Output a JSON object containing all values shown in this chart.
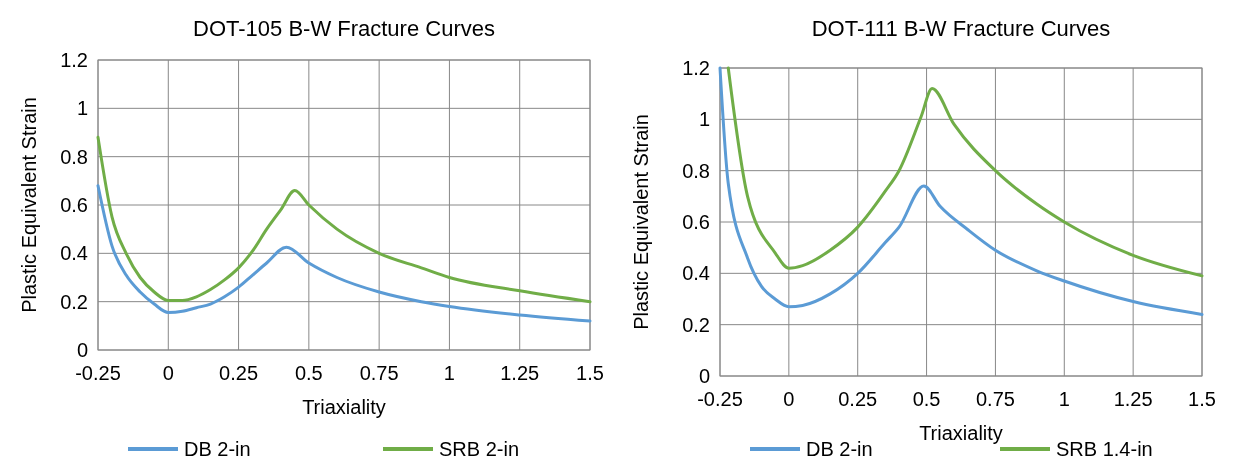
{
  "chart_data": [
    {
      "type": "line",
      "title": "DOT-105 B-W Fracture Curves",
      "xlabel": "Triaxiality",
      "ylabel": "Plastic Equivalent Strain",
      "xlim": [
        -0.25,
        1.5
      ],
      "xticks": [
        -0.25,
        0,
        0.25,
        0.5,
        0.75,
        1,
        1.25,
        1.5
      ],
      "ylim": [
        0,
        1.2
      ],
      "yticks": [
        0,
        0.2,
        0.4,
        0.6,
        0.8,
        1,
        1.2
      ],
      "grid": true,
      "legend": "bottom",
      "marker": "none",
      "line_style": "solid",
      "series": [
        {
          "name": "DB 2-in",
          "color": "#5b9bd5",
          "x": [
            -0.25,
            -0.2,
            -0.15,
            -0.1,
            -0.05,
            0,
            0.05,
            0.1,
            0.15,
            0.2,
            0.25,
            0.3,
            0.35,
            0.42,
            0.5,
            0.6,
            0.75,
            0.9,
            1,
            1.25,
            1.5
          ],
          "values": [
            0.68,
            0.43,
            0.31,
            0.24,
            0.19,
            0.155,
            0.16,
            0.175,
            0.19,
            0.22,
            0.26,
            0.31,
            0.36,
            0.425,
            0.36,
            0.3,
            0.24,
            0.2,
            0.18,
            0.145,
            0.12
          ]
        },
        {
          "name": "SRB 2-in",
          "color": "#70ad47",
          "x": [
            -0.25,
            -0.2,
            -0.15,
            -0.1,
            -0.05,
            0,
            0.05,
            0.1,
            0.15,
            0.2,
            0.25,
            0.3,
            0.35,
            0.4,
            0.45,
            0.5,
            0.6,
            0.75,
            0.9,
            1,
            1.25,
            1.5
          ],
          "values": [
            0.88,
            0.55,
            0.4,
            0.3,
            0.24,
            0.205,
            0.205,
            0.22,
            0.25,
            0.29,
            0.34,
            0.41,
            0.5,
            0.58,
            0.66,
            0.6,
            0.5,
            0.4,
            0.34,
            0.3,
            0.245,
            0.2
          ]
        }
      ]
    },
    {
      "type": "line",
      "title": "DOT-111 B-W Fracture Curves",
      "xlabel": "Triaxiality",
      "ylabel": "Plastic Equivalent Strain",
      "xlim": [
        -0.25,
        1.5
      ],
      "xticks": [
        -0.25,
        0,
        0.25,
        0.5,
        0.75,
        1,
        1.25,
        1.5
      ],
      "ylim": [
        0,
        1.2
      ],
      "yticks": [
        0,
        0.2,
        0.4,
        0.6,
        0.8,
        1,
        1.2
      ],
      "grid": true,
      "legend": "bottom",
      "marker": "none",
      "line_style": "solid",
      "series": [
        {
          "name": "DB 2-in",
          "color": "#5b9bd5",
          "x": [
            -0.25,
            -0.22,
            -0.15,
            -0.1,
            -0.05,
            0,
            0.05,
            0.15,
            0.25,
            0.35,
            0.4,
            0.49,
            0.55,
            0.65,
            0.75,
            0.9,
            1,
            1.25,
            1.5
          ],
          "values": [
            1.2,
            0.75,
            0.46,
            0.35,
            0.3,
            0.27,
            0.275,
            0.32,
            0.4,
            0.52,
            0.58,
            0.74,
            0.66,
            0.57,
            0.49,
            0.41,
            0.37,
            0.29,
            0.24
          ]
        },
        {
          "name": "SRB 1.4-in",
          "color": "#70ad47",
          "x": [
            -0.22,
            -0.15,
            -0.05,
            0,
            0.05,
            0.15,
            0.25,
            0.35,
            0.4,
            0.48,
            0.52,
            0.6,
            0.75,
            0.9,
            1,
            1.25,
            1.5
          ],
          "values": [
            1.2,
            0.7,
            0.48,
            0.42,
            0.43,
            0.49,
            0.58,
            0.72,
            0.8,
            1.01,
            1.12,
            0.98,
            0.8,
            0.67,
            0.6,
            0.47,
            0.39
          ]
        }
      ]
    }
  ]
}
